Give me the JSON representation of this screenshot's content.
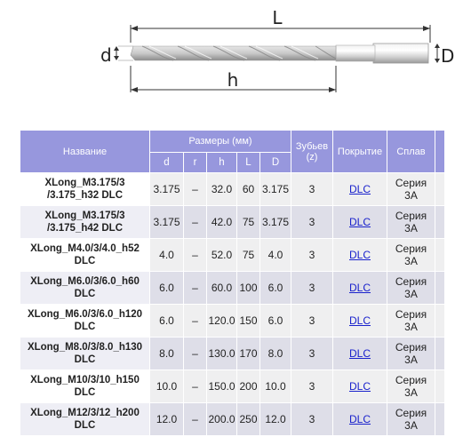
{
  "diagram": {
    "length_label": "L",
    "cut_length_label": "h",
    "tip_diameter_label": "d",
    "shank_diameter_label": "D"
  },
  "table": {
    "headers": {
      "name": "Название",
      "dimensions": "Размеры (мм)",
      "teeth": "Зубьев (z)",
      "coating": "Покрытие",
      "alloy": "Сплав"
    },
    "dim_columns": [
      "d",
      "r",
      "h",
      "L",
      "D"
    ],
    "rows": [
      {
        "name_1": "XLong_M3.175/3",
        "name_2": "/3.175_h32 DLC",
        "d": "3.175",
        "r": "–",
        "h": "32.0",
        "L": "60",
        "D": "3.175",
        "z": "3",
        "coating": "DLC",
        "alloy_1": "Серия",
        "alloy_2": "3А"
      },
      {
        "name_1": "XLong_M3.175/3",
        "name_2": "/3.175_h42 DLC",
        "d": "3.175",
        "r": "–",
        "h": "42.0",
        "L": "75",
        "D": "3.175",
        "z": "3",
        "coating": "DLC",
        "alloy_1": "Серия",
        "alloy_2": "3А"
      },
      {
        "name_1": "XLong_M4.0/3/4.0_h52",
        "name_2": "DLC",
        "d": "4.0",
        "r": "–",
        "h": "52.0",
        "L": "75",
        "D": "4.0",
        "z": "3",
        "coating": "DLC",
        "alloy_1": "Серия",
        "alloy_2": "3А"
      },
      {
        "name_1": "XLong_M6.0/3/6.0_h60",
        "name_2": "DLC",
        "d": "6.0",
        "r": "–",
        "h": "60.0",
        "L": "100",
        "D": "6.0",
        "z": "3",
        "coating": "DLC",
        "alloy_1": "Серия",
        "alloy_2": "3А"
      },
      {
        "name_1": "XLong_M6.0/3/6.0_h120",
        "name_2": "DLC",
        "d": "6.0",
        "r": "–",
        "h": "120.0",
        "L": "150",
        "D": "6.0",
        "z": "3",
        "coating": "DLC",
        "alloy_1": "Серия",
        "alloy_2": "3А"
      },
      {
        "name_1": "XLong_M8.0/3/8.0_h130",
        "name_2": "DLC",
        "d": "8.0",
        "r": "–",
        "h": "130.0",
        "L": "170",
        "D": "8.0",
        "z": "3",
        "coating": "DLC",
        "alloy_1": "Серия",
        "alloy_2": "3А"
      },
      {
        "name_1": "XLong_M10/3/10_h150",
        "name_2": "DLC",
        "d": "10.0",
        "r": "–",
        "h": "150.0",
        "L": "200",
        "D": "10.0",
        "z": "3",
        "coating": "DLC",
        "alloy_1": "Серия",
        "alloy_2": "3А"
      },
      {
        "name_1": "XLong_M12/3/12_h200",
        "name_2": "DLC",
        "d": "12.0",
        "r": "–",
        "h": "200.0",
        "L": "250",
        "D": "12.0",
        "z": "3",
        "coating": "DLC",
        "alloy_1": "Серия",
        "alloy_2": "3А"
      }
    ]
  },
  "colors": {
    "header_bg": "#9797dd",
    "link": "#1a22cc",
    "row_odd": "#efeff0",
    "row_even": "#dedee8"
  }
}
